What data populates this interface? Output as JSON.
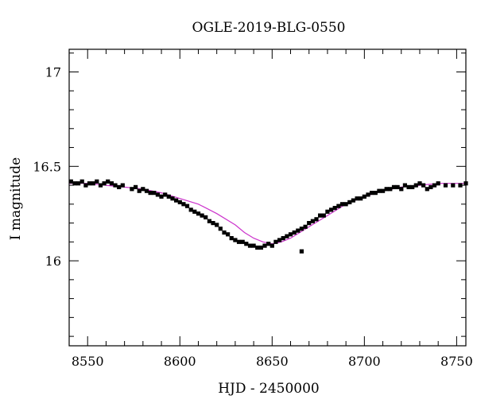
{
  "chart_data": {
    "type": "scatter",
    "title": "OGLE-2019-BLG-0550",
    "xlabel": "HJD - 2450000",
    "ylabel": "I magnitude",
    "xlim": [
      8540,
      8755
    ],
    "ylim": [
      17.12,
      15.55
    ],
    "y_inverted": true,
    "grid": false,
    "x_ticks": [
      8550,
      8600,
      8650,
      8700,
      8750
    ],
    "y_ticks": [
      16,
      16.5,
      17
    ],
    "x_minor_step": 10,
    "y_minor_step": 0.1,
    "series": [
      {
        "type": "scatter",
        "marker": "filled-square",
        "color": "#000000",
        "x": [
          8541,
          8543,
          8545,
          8547,
          8549,
          8551,
          8553,
          8555,
          8557,
          8559,
          8561,
          8563,
          8565,
          8567,
          8569,
          8574,
          8576,
          8578,
          8580,
          8582,
          8584,
          8586,
          8588,
          8590,
          8592,
          8594,
          8596,
          8598,
          8600,
          8602,
          8604,
          8606,
          8608,
          8610,
          8612,
          8614,
          8616,
          8618,
          8620,
          8622,
          8624,
          8626,
          8628,
          8630,
          8632,
          8634,
          8636,
          8638,
          8640,
          8642,
          8644,
          8646,
          8648,
          8650,
          8652,
          8654,
          8656,
          8658,
          8660,
          8662,
          8664,
          8666,
          8668,
          8670,
          8672,
          8674,
          8676,
          8678,
          8680,
          8682,
          8684,
          8686,
          8688,
          8690,
          8692,
          8694,
          8696,
          8698,
          8700,
          8702,
          8704,
          8706,
          8708,
          8710,
          8712,
          8714,
          8716,
          8718,
          8720,
          8722,
          8724,
          8726,
          8728,
          8730,
          8732,
          8734,
          8736,
          8738,
          8740,
          8744,
          8748,
          8752,
          8755,
          8666
        ],
        "y": [
          16.42,
          16.41,
          16.41,
          16.42,
          16.4,
          16.41,
          16.41,
          16.42,
          16.4,
          16.41,
          16.42,
          16.41,
          16.4,
          16.39,
          16.4,
          16.38,
          16.39,
          16.37,
          16.38,
          16.37,
          16.36,
          16.36,
          16.35,
          16.34,
          16.35,
          16.34,
          16.33,
          16.32,
          16.31,
          16.3,
          16.29,
          16.27,
          16.26,
          16.25,
          16.24,
          16.23,
          16.21,
          16.2,
          16.19,
          16.17,
          16.15,
          16.14,
          16.12,
          16.11,
          16.1,
          16.1,
          16.09,
          16.08,
          16.08,
          16.07,
          16.07,
          16.08,
          16.09,
          16.08,
          16.1,
          16.11,
          16.12,
          16.13,
          16.14,
          16.15,
          16.16,
          16.17,
          16.18,
          16.2,
          16.21,
          16.22,
          16.24,
          16.24,
          16.26,
          16.27,
          16.28,
          16.29,
          16.3,
          16.3,
          16.31,
          16.32,
          16.33,
          16.33,
          16.34,
          16.35,
          16.36,
          16.36,
          16.37,
          16.37,
          16.38,
          16.38,
          16.39,
          16.39,
          16.38,
          16.4,
          16.39,
          16.39,
          16.4,
          16.41,
          16.4,
          16.38,
          16.39,
          16.4,
          16.41,
          16.4,
          16.4,
          16.4,
          16.41,
          16.05
        ]
      },
      {
        "type": "line",
        "color": "#cc33cc",
        "x": [
          8540,
          8550,
          8560,
          8570,
          8580,
          8590,
          8600,
          8610,
          8620,
          8630,
          8635,
          8640,
          8645,
          8650,
          8655,
          8660,
          8665,
          8670,
          8680,
          8690,
          8700,
          8710,
          8720,
          8730,
          8740,
          8750,
          8755
        ],
        "y": [
          16.41,
          16.41,
          16.4,
          16.39,
          16.38,
          16.36,
          16.33,
          16.3,
          16.25,
          16.19,
          16.15,
          16.12,
          16.1,
          16.09,
          16.1,
          16.12,
          16.15,
          16.18,
          16.24,
          16.3,
          16.34,
          16.37,
          16.39,
          16.4,
          16.41,
          16.41,
          16.41
        ]
      }
    ]
  }
}
